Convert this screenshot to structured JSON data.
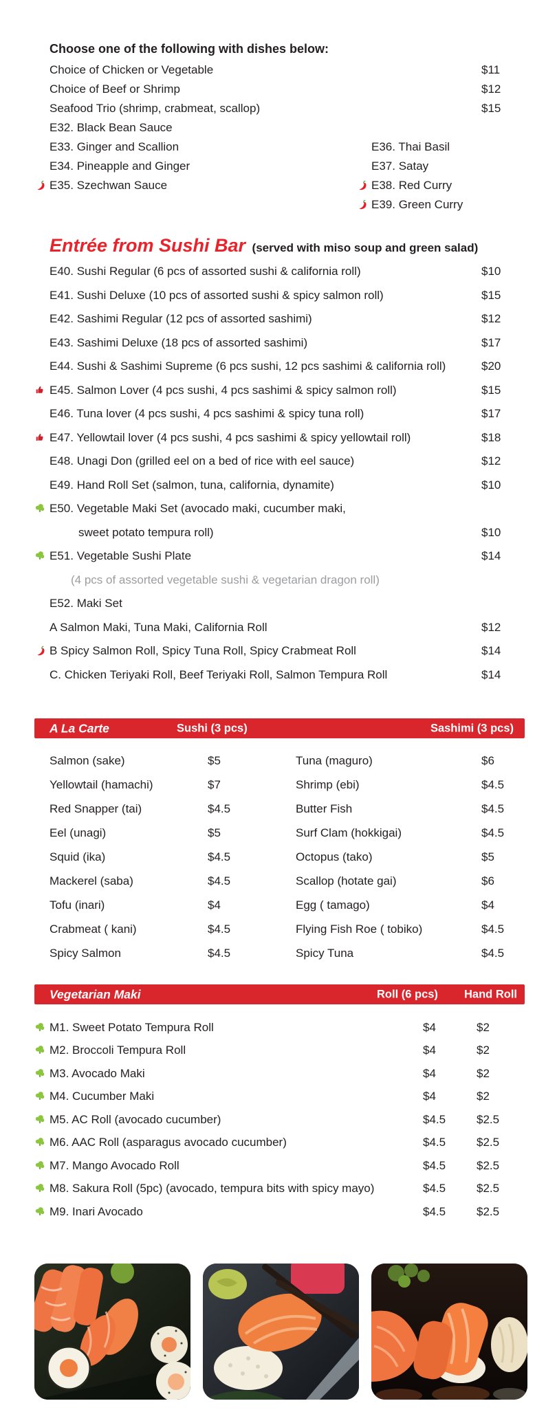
{
  "colors": {
    "bar_red": "#d8262c",
    "title_red": "#e8232b",
    "text": "#231f20",
    "note_gray": "#9b9da0",
    "veg_green": "#8cc63f",
    "chili_red": "#ed1c24",
    "thumb_red": "#cf2129"
  },
  "choose": {
    "heading": "Choose one of the following with dishes below:",
    "priced": [
      {
        "label": "Choice of Chicken or Vegetable",
        "price": "$11"
      },
      {
        "label": "Choice of Beef or Shrimp",
        "price": "$12"
      },
      {
        "label": "Seafood Trio (shrimp, crabmeat, scallop)",
        "price": "$15"
      }
    ],
    "left_options": [
      {
        "label": "E32. Black Bean Sauce"
      },
      {
        "label": "E33. Ginger and Scallion"
      },
      {
        "label": "E34. Pineapple and Ginger"
      },
      {
        "label": "E35. Szechwan Sauce",
        "icon": "chili"
      }
    ],
    "right_options": [
      {
        "label": "E36. Thai Basil"
      },
      {
        "label": "E37. Satay"
      },
      {
        "label": "E38. Red Curry",
        "icon": "chili"
      },
      {
        "label": "E39. Green Curry",
        "icon": "chili"
      }
    ]
  },
  "entree": {
    "title": "Entrée from Sushi Bar",
    "subtitle": "(served with miso soup and green salad)",
    "items": [
      {
        "label": "E40. Sushi Regular (6 pcs of assorted sushi & california roll)",
        "price": "$10"
      },
      {
        "label": "E41. Sushi Deluxe (10 pcs of assorted sushi & spicy salmon roll)",
        "price": "$15"
      },
      {
        "label": "E42. Sashimi Regular (12 pcs of assorted sashimi)",
        "price": "$12"
      },
      {
        "label": "E43. Sashimi Deluxe (18 pcs of assorted sashimi)",
        "price": "$17"
      },
      {
        "label": "E44. Sushi & Sashimi Supreme (6 pcs sushi, 12 pcs sashimi & california roll)",
        "price": "$20"
      },
      {
        "label": "E45. Salmon Lover (4 pcs sushi, 4 pcs sashimi & spicy salmon roll)",
        "price": "$15",
        "icon": "thumb"
      },
      {
        "label": "E46. Tuna lover (4 pcs sushi, 4 pcs sashimi & spicy tuna roll)",
        "price": "$17"
      },
      {
        "label": "E47. Yellowtail lover (4 pcs sushi, 4 pcs sashimi & spicy yellowtail roll)",
        "price": "$18",
        "icon": "thumb"
      },
      {
        "label": "E48. Unagi Don (grilled eel on a bed of rice with eel sauce)",
        "price": "$12"
      },
      {
        "label": "E49. Hand Roll Set (salmon, tuna, california, dynamite)",
        "price": "$10"
      },
      {
        "label": "E50. Vegetable Maki Set (avocado maki, cucumber maki,",
        "icon": "veg"
      },
      {
        "label": "sweet potato tempura roll)",
        "price": "$10",
        "variant": "indent"
      },
      {
        "label": "E51. Vegetable Sushi Plate",
        "price": "$14",
        "icon": "veg"
      },
      {
        "label": "(4 pcs of assorted vegetable sushi & vegetarian dragon roll)",
        "variant": "note"
      },
      {
        "label": "E52. Maki Set"
      },
      {
        "label": "A Salmon Maki, Tuna Maki, California Roll",
        "price": "$12"
      },
      {
        "label": "B Spicy Salmon Roll, Spicy Tuna Roll, Spicy Crabmeat Roll",
        "price": "$14",
        "icon": "chili"
      },
      {
        "label": "C. Chicken Teriyaki Roll, Beef Teriyaki Roll, Salmon Tempura Roll",
        "price": "$14"
      }
    ]
  },
  "alacarte": {
    "title": "A La Carte",
    "col1": "Sushi (3 pcs)",
    "col2": "Sashimi (3 pcs)",
    "rows": [
      {
        "l": "Salmon (sake)",
        "lp": "$5",
        "r": "Tuna (maguro)",
        "rp": "$6"
      },
      {
        "l": "Yellowtail (hamachi)",
        "lp": "$7",
        "r": "Shrimp (ebi)",
        "rp": "$4.5"
      },
      {
        "l": "Red Snapper (tai)",
        "lp": "$4.5",
        "r": "Butter Fish",
        "rp": "$4.5"
      },
      {
        "l": "Eel (unagi)",
        "lp": "$5",
        "r": "Surf Clam (hokkigai)",
        "rp": "$4.5"
      },
      {
        "l": "Squid (ika)",
        "lp": "$4.5",
        "r": "Octopus (tako)",
        "rp": "$5"
      },
      {
        "l": "Mackerel (saba)",
        "lp": "$4.5",
        "r": "Scallop (hotate gai)",
        "rp": "$6"
      },
      {
        "l": "Tofu (inari)",
        "lp": "$4",
        "r": "Egg ( tamago)",
        "rp": "$4"
      },
      {
        "l": "Crabmeat ( kani)",
        "lp": "$4.5",
        "r": "Flying Fish Roe ( tobiko)",
        "rp": "$4.5"
      },
      {
        "l": "Spicy Salmon",
        "lp": "$4.5",
        "r": "Spicy Tuna",
        "rp": "$4.5"
      }
    ]
  },
  "vegetarian": {
    "title": "Vegetarian Maki",
    "col1": "Roll (6 pcs)",
    "col2": "Hand Roll",
    "rows": [
      {
        "label": "M1. Sweet Potato Tempura Roll",
        "roll": "$4",
        "hand": "$2",
        "icon": "veg"
      },
      {
        "label": "M2. Broccoli Tempura Roll",
        "roll": "$4",
        "hand": "$2",
        "icon": "veg"
      },
      {
        "label": "M3. Avocado Maki",
        "roll": "$4",
        "hand": "$2",
        "icon": "veg"
      },
      {
        "label": "M4. Cucumber Maki",
        "roll": "$4",
        "hand": "$2",
        "icon": "veg"
      },
      {
        "label": "M5. AC Roll (avocado cucumber)",
        "roll": "$4.5",
        "hand": "$2.5",
        "icon": "veg"
      },
      {
        "label": "M6. AAC Roll (asparagus avocado cucumber)",
        "roll": "$4.5",
        "hand": "$2.5",
        "icon": "veg"
      },
      {
        "label": "M7. Mango Avocado Roll",
        "roll": "$4.5",
        "hand": "$2.5",
        "icon": "veg"
      },
      {
        "label": "M8. Sakura Roll (5pc) (avocado, tempura bits with spicy mayo)",
        "roll": "$4.5",
        "hand": "$2.5",
        "icon": "veg"
      },
      {
        "label": "M9. Inari Avocado",
        "roll": "$4.5",
        "hand": "$2.5",
        "icon": "veg"
      }
    ]
  },
  "photos": [
    {
      "label": "salmon sashimi and maki roll platter"
    },
    {
      "label": "salmon nigiri held with chopsticks"
    },
    {
      "label": "salmon nigiri close-up"
    }
  ]
}
